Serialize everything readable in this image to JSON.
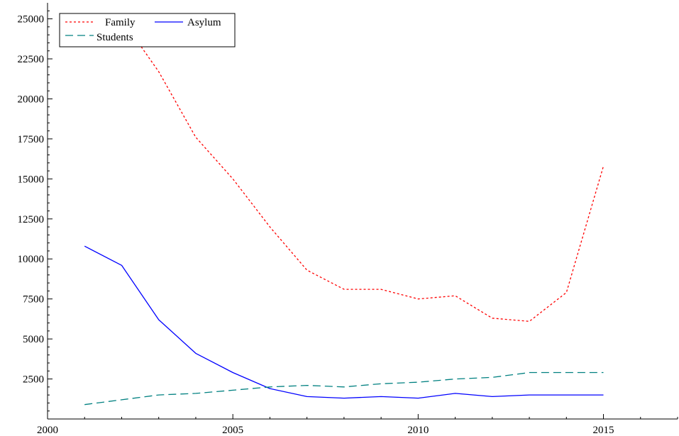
{
  "chart_data": {
    "type": "line",
    "title": "",
    "xlabel": "",
    "ylabel": "",
    "xlim": [
      2000,
      2017
    ],
    "ylim": [
      0,
      26000
    ],
    "x_ticks": [
      2000,
      2005,
      2010,
      2015
    ],
    "y_ticks": [
      2500,
      5000,
      7500,
      10000,
      12500,
      15000,
      17500,
      20000,
      22500,
      25000
    ],
    "grid": false,
    "legend_position": "top-left",
    "x": [
      2001,
      2002,
      2003,
      2004,
      2005,
      2006,
      2007,
      2008,
      2009,
      2010,
      2011,
      2012,
      2013,
      2014,
      2015
    ],
    "series": [
      {
        "name": "Family",
        "color": "#ff0000",
        "style": "dotted",
        "values": [
          23700,
          25000,
          21700,
          17600,
          15000,
          12000,
          9300,
          8100,
          8100,
          7500,
          7700,
          6300,
          6100,
          7900,
          15800
        ]
      },
      {
        "name": "Asylum",
        "color": "#0000ff",
        "style": "solid",
        "values": [
          10800,
          9600,
          6200,
          4100,
          2900,
          1900,
          1400,
          1300,
          1400,
          1300,
          1600,
          1400,
          1500,
          1500,
          1500
        ]
      },
      {
        "name": "Students",
        "color": "#008080",
        "style": "dashed",
        "values": [
          900,
          1200,
          1500,
          1600,
          1800,
          2000,
          2100,
          2000,
          2200,
          2300,
          2500,
          2600,
          2900,
          2900,
          2900
        ]
      }
    ]
  }
}
